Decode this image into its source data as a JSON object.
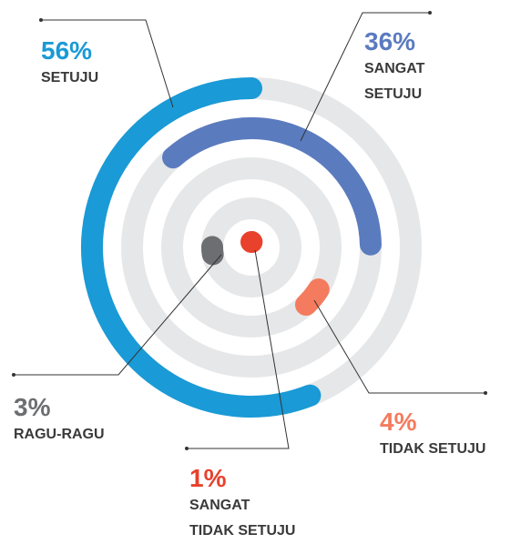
{
  "chart_data": {
    "type": "radial_bar",
    "categories": [
      "SETUJU",
      "SANGAT\nSETUJU",
      "TIDAK SETUJU",
      "RAGU-RAGU",
      "SANGAT\nTIDAK SETUJU"
    ],
    "values": [
      56,
      36,
      4,
      3,
      1
    ],
    "value_labels": [
      "56%",
      "36%",
      "4%",
      "3%",
      "1%"
    ],
    "colors": [
      "#1a9ad6",
      "#5b7bbf",
      "#f47b5e",
      "#6d6e71",
      "#e8412c"
    ],
    "track_color": "#e6e7e8"
  }
}
